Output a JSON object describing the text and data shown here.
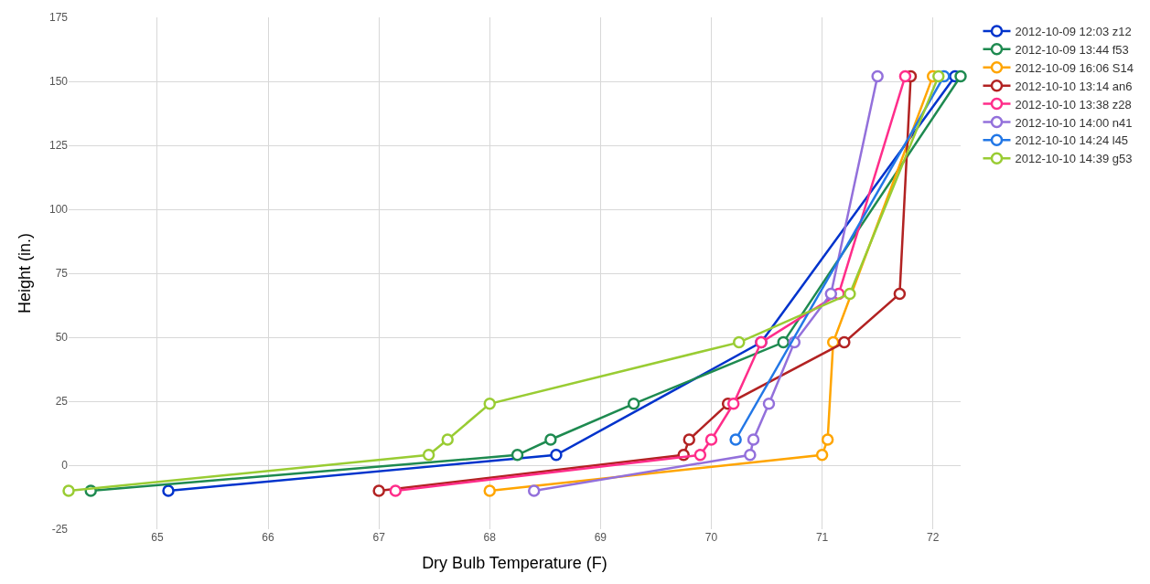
{
  "chart_data": {
    "type": "line",
    "xlabel": "Dry Bulb Temperature (F)",
    "ylabel": "Height (in.)",
    "xlim": [
      64.2,
      72.25
    ],
    "xticks": [
      65,
      66,
      67,
      68,
      69,
      70,
      71,
      72
    ],
    "ylim": [
      -25,
      175
    ],
    "yticks": [
      -25,
      0,
      25,
      50,
      75,
      100,
      125,
      150,
      175
    ],
    "grid": true,
    "legend": "top right",
    "marker": "circle",
    "line_style": "solid",
    "series": [
      {
        "name": "2012-10-09 12:03 z12",
        "color": "#0033cc",
        "x": [
          65.1,
          68.6,
          70.45,
          72.2
        ],
        "values": [
          -10,
          4,
          48,
          152
        ]
      },
      {
        "name": "2012-10-09 13:44 f53",
        "color": "#1e8a50",
        "x": [
          64.4,
          68.25,
          68.55,
          69.3,
          70.65,
          72.25
        ],
        "values": [
          -10,
          4,
          10,
          24,
          48,
          152
        ]
      },
      {
        "name": "2012-10-09 16:06 S14",
        "color": "#ffa500",
        "x": [
          68.0,
          71.0,
          71.05,
          71.1,
          72.0
        ],
        "values": [
          -10,
          4,
          10,
          48,
          152
        ]
      },
      {
        "name": "2012-10-10 13:14 an6",
        "color": "#b22222",
        "x": [
          67.0,
          69.75,
          69.8,
          70.15,
          71.2,
          71.7,
          71.8
        ],
        "values": [
          -10,
          4,
          10,
          24,
          48,
          67,
          152
        ]
      },
      {
        "name": "2012-10-10 13:38 z28",
        "color": "#ff2d8a",
        "x": [
          67.15,
          69.9,
          70.0,
          70.2,
          70.45,
          71.15,
          71.75
        ],
        "values": [
          -10,
          4,
          10,
          24,
          48,
          67,
          152
        ]
      },
      {
        "name": "2012-10-10 14:00 n41",
        "color": "#9370db",
        "x": [
          68.4,
          70.35,
          70.38,
          70.52,
          70.75,
          71.08,
          71.5
        ],
        "values": [
          -10,
          4,
          10,
          24,
          48,
          67,
          152
        ]
      },
      {
        "name": "2012-10-10 14:24 l45",
        "color": "#2277e6",
        "x": [
          70.22,
          72.1
        ],
        "values": [
          10,
          152
        ]
      },
      {
        "name": "2012-10-10 14:39 g53",
        "color": "#99cc33",
        "x": [
          64.2,
          67.45,
          67.62,
          68.0,
          70.25,
          71.25,
          72.05
        ],
        "values": [
          -10,
          4,
          10,
          24,
          48,
          67,
          152
        ]
      }
    ]
  }
}
